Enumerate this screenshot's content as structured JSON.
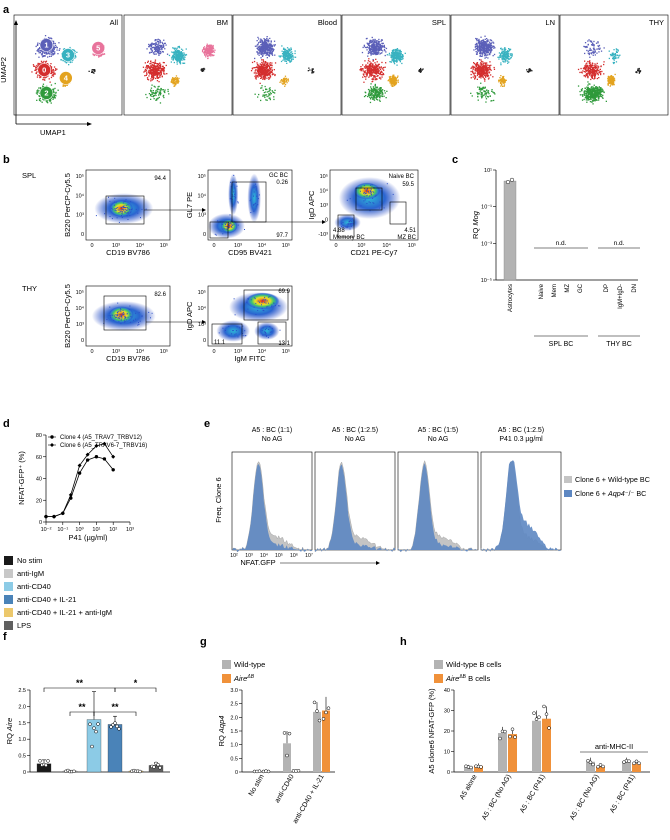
{
  "panels": {
    "a": "a",
    "b": "b",
    "c": "c",
    "d": "d",
    "e": "e",
    "f": "f",
    "g": "g",
    "h": "h"
  },
  "colors": {
    "c0": "#d42e2e",
    "c1": "#5b5fb8",
    "c2": "#2f9a3b",
    "c3": "#38b2c0",
    "c4": "#e3a31f",
    "c5": "#e8739b",
    "c6": "#222222",
    "wt": "#b3b3b3",
    "aire": "#f0913a",
    "nostim": "#1a1a1a",
    "antiigm": "#c8c8c8",
    "antiCD40": "#8ccbe6",
    "cd40il21": "#4a83b8",
    "cd40il21igm": "#ecc86c",
    "lps": "#606060",
    "blueHist": "#5d87c2",
    "grayHist": "#c4c4c4"
  },
  "a": {
    "titles": [
      "All",
      "BM",
      "Blood",
      "SPL",
      "LN",
      "THY"
    ],
    "umap_y": "UMAP2",
    "umap_x": "UMAP1",
    "clusters": [
      "1",
      "0",
      "3",
      "5",
      "2",
      "4"
    ]
  },
  "b": {
    "row1": "SPL",
    "row2": "THY",
    "p1": {
      "x": "CD19 BV786",
      "y": "B220 PerCP-Cy5.5",
      "pct": "94.4",
      "xt": [
        "0",
        "10³",
        "10⁴",
        "10⁵"
      ],
      "yt": [
        "10⁵",
        "10⁴",
        "10³",
        "0"
      ]
    },
    "p2": {
      "x": "CD95 BV421",
      "y": "GL7 PE",
      "gate": "GC BC",
      "pct": "0.26",
      "pct2": "97.7",
      "xt": [
        "0",
        "10³",
        "10⁴",
        "10⁵"
      ],
      "yt": [
        "10⁵",
        "10⁴",
        "10³",
        "0"
      ]
    },
    "p3": {
      "x": "CD21 PE-Cy7",
      "y": "IgD APC",
      "naive": "Naive BC",
      "naive_pct": "59.5",
      "mem_pct": "4.88",
      "mem": "Memory BC",
      "mz_pct": "4.51",
      "mz": "MZ BC",
      "xt": [
        "0",
        "10³",
        "10⁴",
        "10⁵"
      ],
      "yt": [
        "10⁵",
        "10⁴",
        "10³",
        "0",
        "-10³"
      ]
    },
    "p4": {
      "x": "CD19 BV786",
      "y": "B220 PerCP-Cy5.5",
      "pct": "82.6",
      "xt": [
        "0",
        "10³",
        "10⁴",
        "10⁵"
      ],
      "yt": [
        "10⁵",
        "10⁴",
        "10³",
        "0"
      ]
    },
    "p5": {
      "x": "IgM FITC",
      "y": "IgD APC",
      "pct_tr": "69.9",
      "pct_br": "13.1",
      "pct_bl": "11.1",
      "xt": [
        "0",
        "10³",
        "10⁴",
        "10⁵"
      ],
      "yt": [
        "10⁵",
        "10⁴",
        "10³",
        "0"
      ]
    }
  },
  "c": {
    "ylabel_pre": "RQ ",
    "ylabel_it": "Mog",
    "yt": [
      "10¹",
      "10⁻¹",
      "10⁻³",
      "10⁻⁵"
    ],
    "cats": [
      "Astrocytes",
      "Naive",
      "Mem",
      "MZ",
      "GC",
      "DP",
      "IgM+IgD-",
      "DN"
    ],
    "nd1": "n.d.",
    "nd2": "n.d.",
    "group1": "SPL BC",
    "group2": "THY BC"
  },
  "chart_data": [
    {
      "type": "bar",
      "panel": "c",
      "title": "",
      "ylabel": "RQ Mog",
      "yscale": "log",
      "ylim": [
        1e-05,
        10
      ],
      "categories": [
        "Astrocytes",
        "Naive",
        "Mem",
        "MZ",
        "GC",
        "DP",
        "IgM+IgD-",
        "DN"
      ],
      "values": [
        2.5,
        null,
        null,
        null,
        null,
        null,
        null,
        null
      ]
    },
    {
      "type": "line",
      "panel": "d",
      "xlabel": "P41 (µg/ml)",
      "ylabel": "NFAT-GFP+ (%)",
      "xscale": "log",
      "xlim": [
        0.01,
        1000
      ],
      "ylim": [
        0,
        80
      ],
      "x": [
        0.01,
        0.03,
        0.1,
        0.3,
        1,
        3,
        10,
        30,
        100
      ],
      "series": [
        {
          "name": "Clone 4 (A5_TRAV7_TRBV12)",
          "values": [
            5,
            5,
            8,
            22,
            45,
            57,
            60,
            58,
            48
          ],
          "marker": "circle"
        },
        {
          "name": "Clone 6 (A5_TRAV6-7_TRBV16)",
          "values": [
            5,
            5,
            8,
            25,
            52,
            62,
            70,
            72,
            60
          ],
          "marker": "diamond"
        }
      ]
    },
    {
      "type": "bar",
      "panel": "f",
      "ylabel": "RQ Aire",
      "ylim": [
        0,
        2.5
      ],
      "categories": [
        "No stim",
        "anti-IgM",
        "anti-CD40",
        "anti-CD40 + IL-21",
        "anti-CD40 + IL-21 + anti-IgM",
        "LPS"
      ],
      "values": [
        0.25,
        0.03,
        1.6,
        1.45,
        0.03,
        0.2
      ]
    },
    {
      "type": "bar",
      "panel": "g",
      "ylabel": "RQ Aqp4",
      "ylim": [
        0,
        3.0
      ],
      "categories": [
        "No stim",
        "anti-CD40",
        "anti-CD40 + IL-21"
      ],
      "series": [
        {
          "name": "Wild-type",
          "values": [
            0.02,
            1.05,
            2.2
          ]
        },
        {
          "name": "Aire ΔB",
          "values": [
            0.02,
            0.03,
            2.25
          ]
        }
      ]
    },
    {
      "type": "bar",
      "panel": "h",
      "ylabel": "A5 clone6 NFAT-GFP (%)",
      "ylim": [
        0,
        40
      ],
      "categories": [
        "A5 alone",
        "A5 : BC (No AG)",
        "A5 : BC (P41)",
        "A5 : BC (No AG)",
        "A5 : BC (P41)"
      ],
      "series": [
        {
          "name": "Wild-type B cells",
          "values": [
            2.5,
            19,
            25,
            5,
            5
          ]
        },
        {
          "name": "Aire ΔB B cells",
          "values": [
            3,
            18.5,
            26,
            2.5,
            4
          ]
        }
      ]
    }
  ],
  "d": {
    "ylabel": "NFAT-GFP⁺ (%)",
    "xlabel": "P41 (µg/ml)",
    "leg1": "Clone 4 (A5_TRAV7_TRBV12)",
    "leg2": "Clone 6 (A5_TRAV6-7_TRBV16)",
    "yt": [
      "0",
      "20",
      "40",
      "60",
      "80"
    ],
    "xt": [
      "10⁻²",
      "10⁻¹",
      "10⁰",
      "10¹",
      "10²",
      "10³"
    ]
  },
  "e": {
    "t1a": "A5 : BC (1:1)",
    "t1b": "No AG",
    "t2a": "A5 : BC (1:2.5)",
    "t2b": "No AG",
    "t3a": "A5 : BC (1:5)",
    "t3b": "No AG",
    "t4a": "A5 : BC (1:2.5)",
    "t4b": "P41 0.3 µg/ml",
    "ylabel": "Freq. Clone 6",
    "xlabel": "NFAT.GFP",
    "leg1": "Clone 6 + Wild-type BC",
    "leg2_pre": "Clone 6 + ",
    "leg2_it": "Aqp4",
    "leg2_post": "⁻/⁻ BC",
    "xt": [
      "10²",
      "10³",
      "10⁴",
      "10⁵",
      "10⁶",
      "10⁷"
    ]
  },
  "f": {
    "legend": [
      "No stim",
      "anti-IgM",
      "anti-CD40",
      "anti-CD40 + IL-21",
      "anti-CD40 + IL-21 + anti-IgM",
      "LPS"
    ],
    "ylabel_pre": "RQ ",
    "ylabel_it": "Aire",
    "yt": [
      "0",
      "0.5",
      "1.0",
      "1.5",
      "2.0",
      "2.5"
    ],
    "sig1": "**",
    "sig2": "*",
    "sig3": "**",
    "sig4": "**"
  },
  "g": {
    "leg1": "Wild-type",
    "leg2": "Aire",
    "leg2_sup": "ΔB",
    "ylabel_pre": "RQ ",
    "ylabel_it": "Aqp4",
    "yt": [
      "0",
      "0.5",
      "1.0",
      "1.5",
      "2.0",
      "2.5",
      "3.0"
    ],
    "cats": [
      "No stim",
      "anti-CD40",
      "anti-CD40 + IL-21"
    ]
  },
  "h": {
    "leg1": "Wild-type B cells",
    "leg2": "Aire",
    "leg2_sup": "ΔB",
    "leg2_post": " B cells",
    "ylabel": "A5 clone6 NFAT-GFP (%)",
    "yt": [
      "0",
      "10",
      "20",
      "30",
      "40"
    ],
    "anti": "anti-MHC-II",
    "cats": [
      "A5 alone",
      "A5 : BC (No AG)",
      "A5 : BC (P41)",
      "A5 : BC (No AG)",
      "A5 : BC (P41)"
    ]
  }
}
